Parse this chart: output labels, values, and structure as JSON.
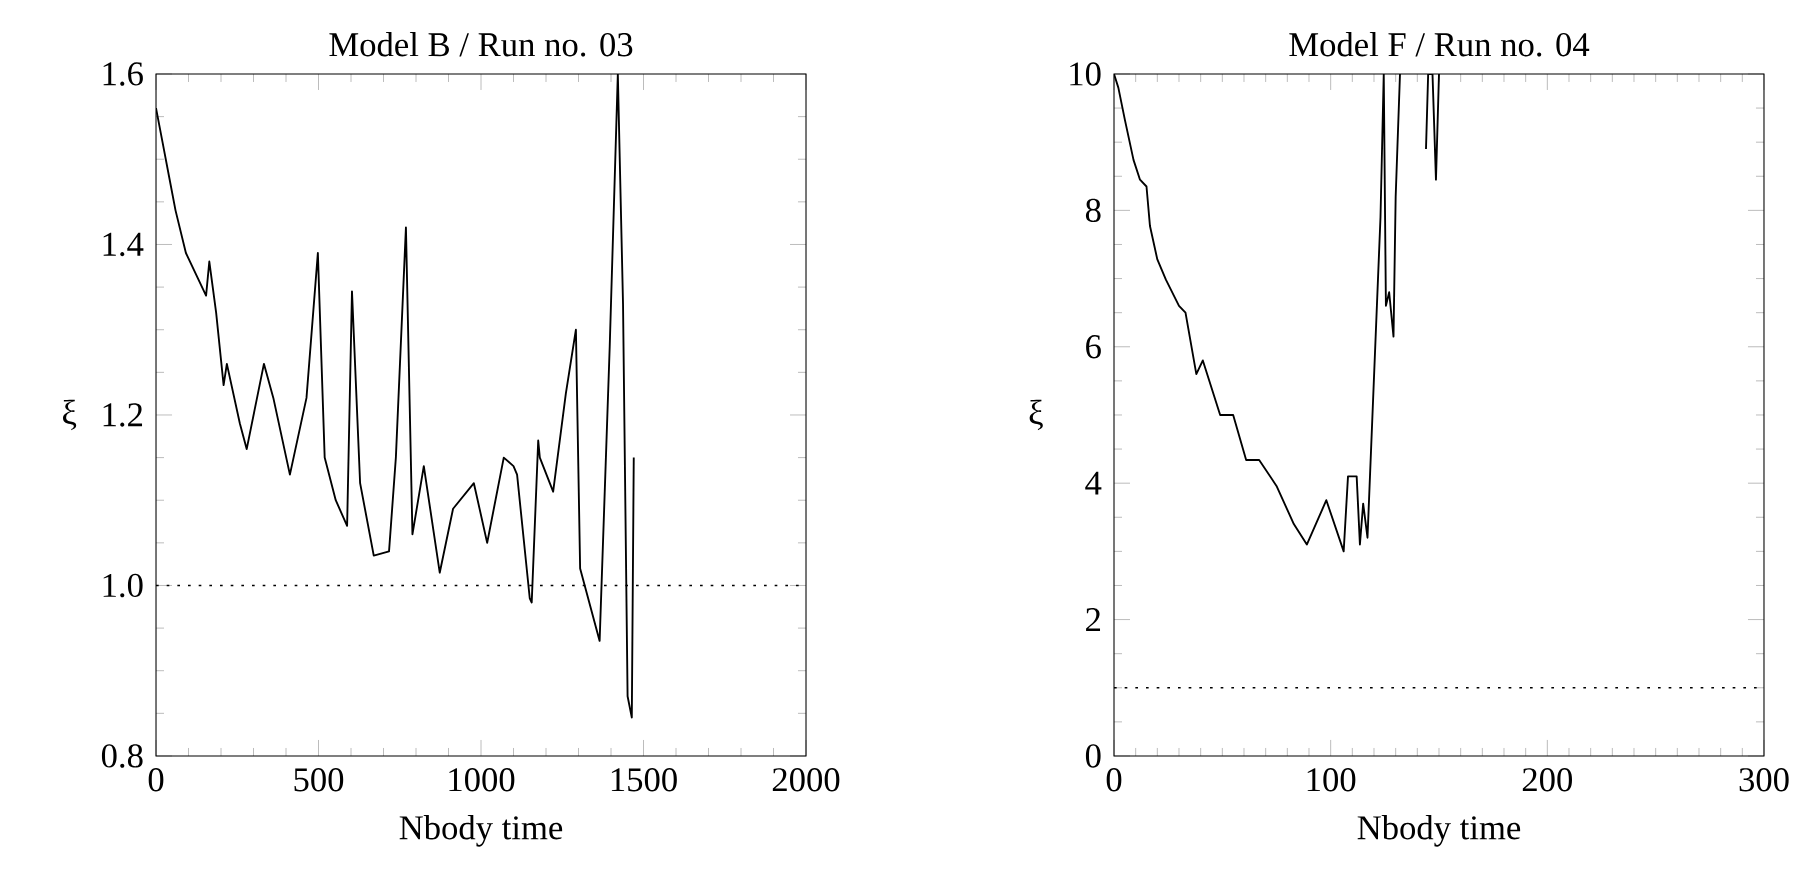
{
  "chart_data": [
    {
      "type": "line",
      "title": "Model B / Run no. 03",
      "xlabel": "Nbody time",
      "ylabel": "ξ",
      "x": [
        0,
        20,
        40,
        60,
        92,
        154,
        164,
        185,
        208,
        218,
        258,
        279,
        332,
        361,
        412,
        463,
        498,
        519,
        553,
        588,
        603,
        628,
        670,
        717,
        738,
        769,
        789,
        824,
        873,
        914,
        978,
        1019,
        1070,
        1100,
        1111,
        1150,
        1156,
        1176,
        1181,
        1222,
        1261,
        1292,
        1305,
        1365,
        1396,
        1421,
        1437,
        1451,
        1464,
        1470
      ],
      "series": [
        {
          "color": "#000000",
          "values": [
            1.56,
            1.52,
            1.48,
            1.44,
            1.39,
            1.34,
            1.38,
            1.32,
            1.235,
            1.26,
            1.19,
            1.16,
            1.26,
            1.22,
            1.13,
            1.22,
            1.39,
            1.15,
            1.1,
            1.07,
            1.345,
            1.12,
            1.035,
            1.04,
            1.15,
            1.42,
            1.06,
            1.14,
            1.015,
            1.09,
            1.12,
            1.05,
            1.15,
            1.14,
            1.13,
            0.985,
            0.98,
            1.17,
            1.15,
            1.11,
            1.225,
            1.3,
            1.02,
            0.935,
            1.28,
            1.6,
            1.33,
            0.87,
            0.845,
            1.15
          ]
        }
      ],
      "xlim": [
        0,
        2000
      ],
      "ylim": [
        0.8,
        1.6
      ],
      "xticks": [
        0,
        500,
        1000,
        1500,
        2000
      ],
      "yticks": [
        {
          "value": 0.8,
          "label": "0.8"
        },
        {
          "value": 1.0,
          "label": "1.0"
        },
        {
          "value": 1.2,
          "label": "1.2"
        },
        {
          "value": 1.4,
          "label": "1.4"
        },
        {
          "value": 1.6,
          "label": "1.6"
        }
      ],
      "ref_lines": [
        {
          "axis": "y",
          "value": 1.0,
          "line_style": "dotted"
        }
      ]
    },
    {
      "type": "line",
      "title": "Model F / Run no. 04",
      "xlabel": "Nbody time",
      "ylabel": "ξ",
      "x": [
        0,
        2,
        5,
        9,
        12,
        15,
        16.6,
        20,
        24,
        30,
        33,
        38,
        41,
        49,
        55,
        61,
        67,
        75,
        83,
        89,
        98,
        106,
        108,
        112,
        113.5,
        115,
        117,
        123,
        124.5,
        125.5,
        127,
        129,
        130,
        132,
        138,
        144,
        145,
        147,
        148.6,
        150
      ],
      "series": [
        {
          "color": "#000000",
          "values": [
            10,
            9.8,
            9.33,
            8.74,
            8.45,
            8.35,
            7.77,
            7.28,
            6.98,
            6.6,
            6.5,
            5.6,
            5.8,
            5.0,
            5.0,
            4.34,
            4.34,
            3.96,
            3.4,
            3.1,
            3.75,
            3.0,
            4.1,
            4.1,
            3.1,
            3.7,
            3.2,
            7.9,
            10,
            6.6,
            6.8,
            6.15,
            8.2,
            10,
            null,
            8.9,
            10,
            10,
            8.45,
            10
          ]
        }
      ],
      "xlim": [
        0,
        300
      ],
      "ylim": [
        0,
        10
      ],
      "xticks": [
        0,
        100,
        200,
        300
      ],
      "yticks": [
        0,
        2,
        4,
        6,
        8,
        10
      ],
      "ref_lines": [
        {
          "axis": "y",
          "value": 1,
          "line_style": "dotted"
        }
      ]
    }
  ]
}
